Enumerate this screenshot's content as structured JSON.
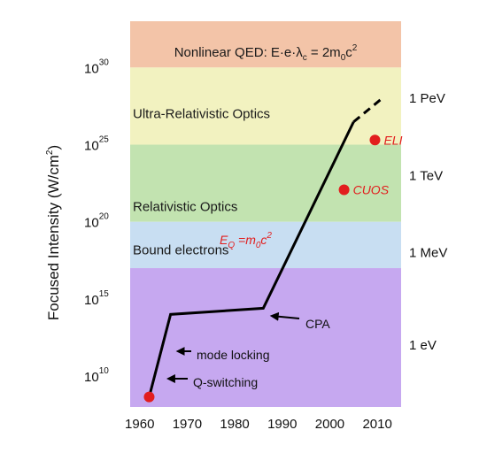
{
  "chart_data": {
    "type": "line",
    "title": "",
    "xlabel": "",
    "ylabel": "Focused Intensity (W/cm²)",
    "ylabel_base": "Focused Intensity (W/cm",
    "ylabel_exp": "2",
    "ylabel_tail": ")",
    "xlim": [
      1958,
      2015
    ],
    "ylim": [
      100000000.0,
      1e+33
    ],
    "yscale": "log",
    "x_ticks": [
      "1960",
      "1970",
      "1980",
      "1990",
      "2000",
      "2010"
    ],
    "y_ticks": [
      {
        "base": "10",
        "exp": "10",
        "value": 10000000000.0
      },
      {
        "base": "10",
        "exp": "15",
        "value": 1000000000000000.0
      },
      {
        "base": "10",
        "exp": "20",
        "value": 1e+20
      },
      {
        "base": "10",
        "exp": "25",
        "value": 1e+25
      },
      {
        "base": "10",
        "exp": "30",
        "value": 1e+30
      }
    ],
    "bands": [
      {
        "label": "Nonlinear QED: E·e·λ_c = 2m₀c²",
        "from": 1e+30,
        "to": 1e+33,
        "color": "#f3c4a8"
      },
      {
        "label": "Ultra-Relativistic Optics",
        "from": 1e+25,
        "to": 1e+30,
        "color": "#f2f2c0"
      },
      {
        "label": "Relativistic Optics",
        "from": 1e+20,
        "to": 1e+25,
        "color": "#c2e3b0"
      },
      {
        "label": "Bound electrons",
        "from": 1e+17,
        "to": 1e+20,
        "color": "#c8def2"
      },
      {
        "label": "",
        "from": 100000000.0,
        "to": 1e+17,
        "color": "#c6a8f0"
      }
    ],
    "qed_label": {
      "text": "Nonlinear QED: E·e·λ",
      "sub": "c",
      "mid": " = 2m",
      "sub2": "0",
      "tail": "c",
      "sup": "2"
    },
    "energy_labels": [
      {
        "text": "1 PeV",
        "value": 1e+28
      },
      {
        "text": "1 TeV",
        "value": 1e+23
      },
      {
        "text": "1 MeV",
        "value": 1e+18
      },
      {
        "text": "1 eV",
        "value": 1000000000000.0
      }
    ],
    "series": [
      {
        "points": [
          [
            1962,
            450000000.0
          ],
          [
            1966.5,
            100000000000000.0
          ],
          [
            1986,
            250000000000000.0
          ],
          [
            2005,
            3e+26
          ]
        ],
        "dashed_extension": [
          [
            2005,
            3e+26
          ],
          [
            2011,
            1e+28
          ]
        ],
        "color": "#000000"
      }
    ],
    "markers": [
      {
        "label": "",
        "x": 1962,
        "y": 450000000.0,
        "color": "#e21e1e"
      },
      {
        "label": "CUOS",
        "x": 2003,
        "y": 1.2e+22,
        "color": "#e21e1e"
      },
      {
        "label": "ELI",
        "x": 2009.5,
        "y": 2e+25,
        "color": "#e21e1e"
      }
    ],
    "annotations": [
      {
        "text": "mode locking",
        "arrow_to": [
          1966.5,
          100000000000.0
        ]
      },
      {
        "text": "Q-switching",
        "arrow_to": [
          1964.5,
          3000000000.0
        ]
      },
      {
        "text": "CPA",
        "arrow_to": [
          1987,
          80000000000000.0
        ]
      }
    ],
    "eq_label": {
      "text": "E",
      "sub": "Q",
      "mid": " =m",
      "sub2": "0",
      "tail": "c",
      "sup": "2"
    }
  }
}
